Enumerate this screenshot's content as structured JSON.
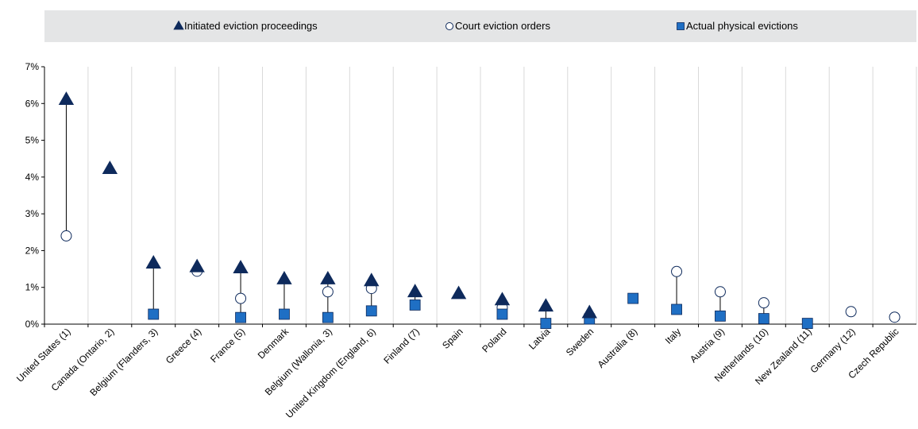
{
  "chart_data": {
    "type": "scatter",
    "title": "",
    "xlabel": "",
    "ylabel": "",
    "ylim": [
      0,
      7
    ],
    "y_ticks": [
      "0%",
      "1%",
      "2%",
      "3%",
      "4%",
      "5%",
      "6%",
      "7%"
    ],
    "grid": "vertical",
    "legend_position": "top",
    "categories": [
      "United States (1)",
      "Canada (Ontario, 2)",
      "Belgium (Flanders, 3)",
      "Greece (4)",
      "France (5)",
      "Denmark",
      "Belgium (Wallonia, 3)",
      "United Kingdom (England, 6)",
      "Finland (7)",
      "Spain",
      "Poland",
      "Latvia",
      "Sweden",
      "Australia (8)",
      "Italy",
      "Austria (9)",
      "Netherlands (10)",
      "New Zealand (11)",
      "Germany (12)",
      "Czech Republic"
    ],
    "series": [
      {
        "name": "Initiated eviction proceedings",
        "marker": "triangle",
        "color": "#0e2a5c",
        "values": [
          6.1,
          4.22,
          1.65,
          1.55,
          1.52,
          1.22,
          1.22,
          1.17,
          0.87,
          0.82,
          0.65,
          0.48,
          0.3,
          null,
          null,
          null,
          null,
          null,
          null,
          null
        ]
      },
      {
        "name": "Court eviction orders",
        "marker": "circle",
        "color": "#ffffff",
        "values": [
          2.4,
          null,
          null,
          1.44,
          0.7,
          null,
          0.88,
          0.97,
          null,
          null,
          0.45,
          null,
          null,
          null,
          1.43,
          0.88,
          0.58,
          null,
          0.34,
          0.19
        ]
      },
      {
        "name": "Actual physical evictions",
        "marker": "square",
        "color": "#1f6fc4",
        "values": [
          null,
          null,
          0.27,
          null,
          0.18,
          0.27,
          0.18,
          0.36,
          0.52,
          null,
          0.27,
          0.02,
          0.14,
          0.7,
          0.4,
          0.22,
          0.15,
          0.02,
          null,
          null
        ]
      }
    ]
  }
}
